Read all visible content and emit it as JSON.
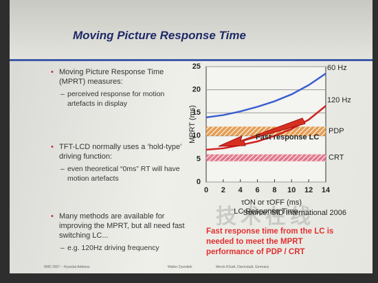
{
  "slide": {
    "title": "Moving Picture Response Time",
    "bullets": [
      {
        "text": "Moving Picture Response Time (MPRT) measures:",
        "sub": [
          "perceived response for motion artefacts in display"
        ]
      },
      {
        "text": "TFT-LCD normally uses a ‘hold-type’ driving function:",
        "sub": [
          "even theoretical “0ms” RT will have motion artefacts"
        ]
      },
      {
        "text": "Many methods are available for improving the MPRT, but all need fast switching LC...",
        "sub": [
          "e.g. 120Hz driving frequency"
        ]
      }
    ],
    "conclusion": "Fast response time from the LC is needed to meet the MPRT performance of PDP / CRT",
    "footer": [
      "IMID 2007 – Hyundai Address",
      "Walter Zywottek",
      "Merck KGaA, Darmstadt, Germany"
    ],
    "watermark": "技术在线"
  },
  "chart_data": {
    "type": "line",
    "ylabel": "MPRT (ms)",
    "xlabel": "τON or τOFF (ms)",
    "caption": "LC Response Time",
    "source": "Source: SID International 2006",
    "annotation": "Fast response LC",
    "x": [
      0,
      2,
      4,
      6,
      8,
      10,
      12,
      14
    ],
    "series": [
      {
        "name": "60 Hz",
        "color": "#3a5fd0",
        "values": [
          14,
          14.5,
          15.3,
          16.3,
          17.5,
          19,
          21,
          23.5
        ]
      },
      {
        "name": "120 Hz",
        "color": "#d02020",
        "values": [
          7,
          7.3,
          8,
          8.8,
          10,
          11.5,
          13.5,
          16.5
        ]
      }
    ],
    "bands": [
      {
        "name": "PDP",
        "color": "#e08a30",
        "range": [
          10,
          12
        ]
      },
      {
        "name": "CRT",
        "color": "#e0607a",
        "range": [
          4.5,
          6
        ]
      }
    ],
    "xlim": [
      0,
      14
    ],
    "ylim": [
      0,
      25
    ],
    "xticks": [
      0,
      2,
      4,
      6,
      8,
      10,
      12,
      14
    ],
    "yticks": [
      0,
      5,
      10,
      15,
      20,
      25
    ],
    "grid": true
  }
}
